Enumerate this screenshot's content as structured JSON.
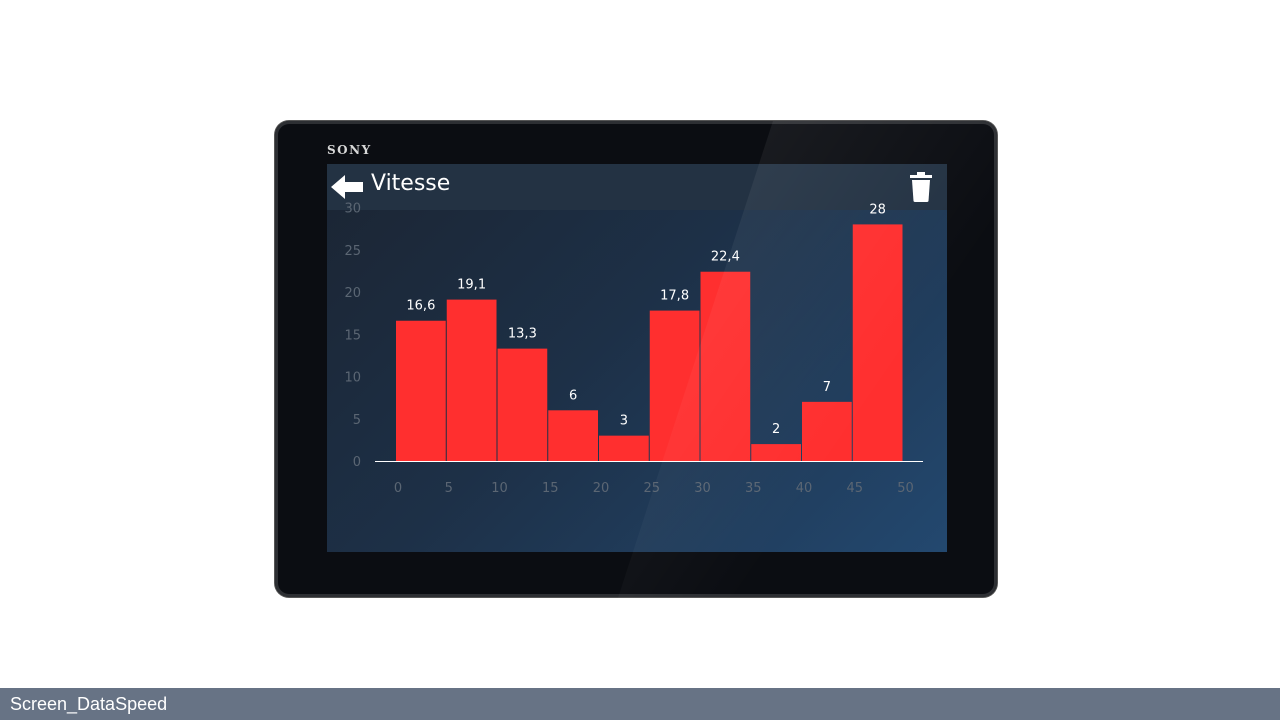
{
  "device": {
    "brand": "SONY"
  },
  "app": {
    "title": "Vitesse",
    "back_icon": "arrow-left-icon",
    "delete_icon": "trash-icon"
  },
  "colors": {
    "bar": "#ff2f2f",
    "axis_text": "#5b6673",
    "label_text": "#ffffff",
    "baseline": "#ffffff"
  },
  "chart_data": {
    "type": "bar",
    "title": "",
    "xlabel": "",
    "ylabel": "",
    "ylim": [
      0,
      30
    ],
    "yticks": [
      0,
      5,
      10,
      15,
      20,
      25,
      30
    ],
    "xticks": [
      "0",
      "5",
      "10",
      "15",
      "20",
      "25",
      "30",
      "35",
      "40",
      "45",
      "50"
    ],
    "bins": [
      [
        0,
        5
      ],
      [
        5,
        10
      ],
      [
        10,
        15
      ],
      [
        15,
        20
      ],
      [
        20,
        25
      ],
      [
        25,
        30
      ],
      [
        30,
        35
      ],
      [
        35,
        40
      ],
      [
        40,
        45
      ],
      [
        45,
        50
      ]
    ],
    "values": [
      16.6,
      19.1,
      13.3,
      6,
      3,
      17.8,
      22.4,
      2,
      7,
      28
    ],
    "value_labels": [
      "16,6",
      "19,1",
      "13,3",
      "6",
      "3",
      "17,8",
      "22,4",
      "2",
      "7",
      "28"
    ],
    "grid": false,
    "legend": "none"
  },
  "footer": {
    "label": "Screen_DataSpeed"
  }
}
